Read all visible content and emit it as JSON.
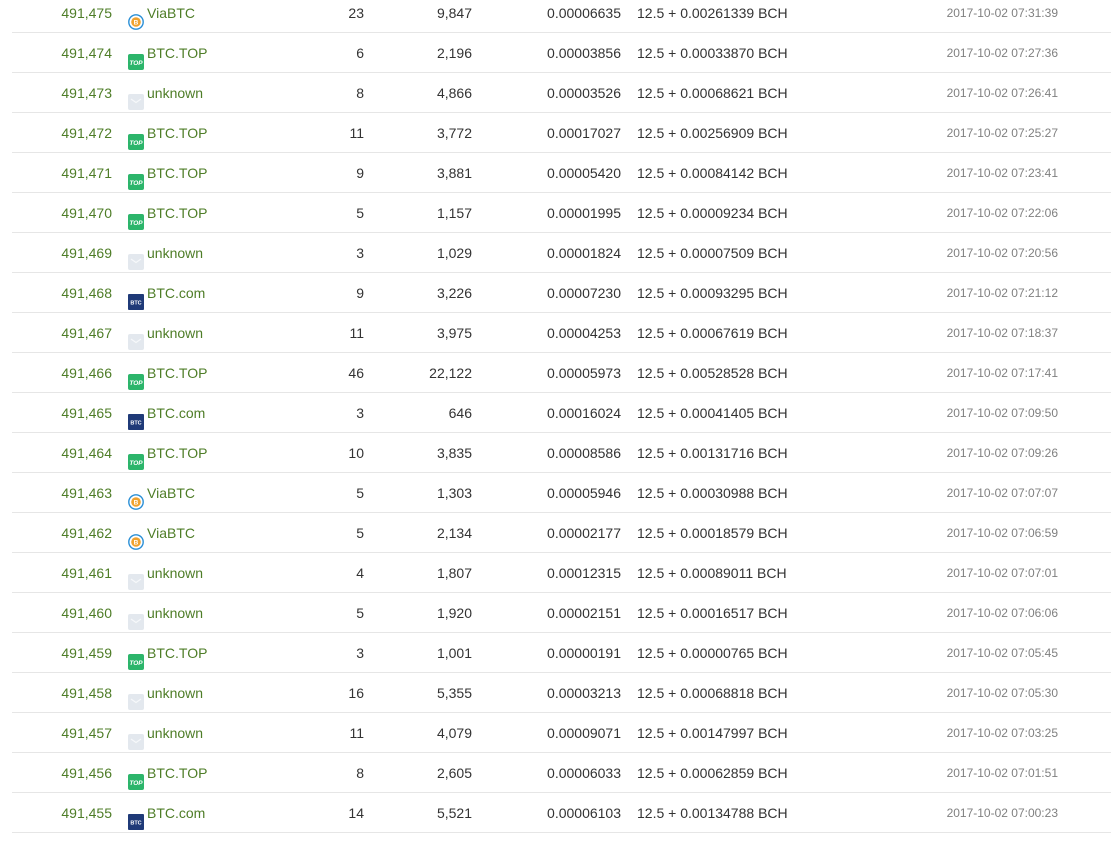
{
  "blocks": [
    {
      "height": "491,475",
      "pool": "ViaBTC",
      "pool_icon": "viabtc-icon",
      "tx": "23",
      "size": "9,847",
      "fee": "0.00006635",
      "reward_base": "12.5 + 0.00261339",
      "reward_unit": "BCH",
      "time": "2017-10-02 07:31:39"
    },
    {
      "height": "491,474",
      "pool": "BTC.TOP",
      "pool_icon": "btctop-icon",
      "tx": "6",
      "size": "2,196",
      "fee": "0.00003856",
      "reward_base": "12.5 + 0.00033870",
      "reward_unit": "BCH",
      "time": "2017-10-02 07:27:36"
    },
    {
      "height": "491,473",
      "pool": "unknown",
      "pool_icon": "unknown-pool-icon",
      "tx": "8",
      "size": "4,866",
      "fee": "0.00003526",
      "reward_base": "12.5 + 0.00068621",
      "reward_unit": "BCH",
      "time": "2017-10-02 07:26:41"
    },
    {
      "height": "491,472",
      "pool": "BTC.TOP",
      "pool_icon": "btctop-icon",
      "tx": "11",
      "size": "3,772",
      "fee": "0.00017027",
      "reward_base": "12.5 + 0.00256909",
      "reward_unit": "BCH",
      "time": "2017-10-02 07:25:27"
    },
    {
      "height": "491,471",
      "pool": "BTC.TOP",
      "pool_icon": "btctop-icon",
      "tx": "9",
      "size": "3,881",
      "fee": "0.00005420",
      "reward_base": "12.5 + 0.00084142",
      "reward_unit": "BCH",
      "time": "2017-10-02 07:23:41"
    },
    {
      "height": "491,470",
      "pool": "BTC.TOP",
      "pool_icon": "btctop-icon",
      "tx": "5",
      "size": "1,157",
      "fee": "0.00001995",
      "reward_base": "12.5 + 0.00009234",
      "reward_unit": "BCH",
      "time": "2017-10-02 07:22:06"
    },
    {
      "height": "491,469",
      "pool": "unknown",
      "pool_icon": "unknown-pool-icon",
      "tx": "3",
      "size": "1,029",
      "fee": "0.00001824",
      "reward_base": "12.5 + 0.00007509",
      "reward_unit": "BCH",
      "time": "2017-10-02 07:20:56"
    },
    {
      "height": "491,468",
      "pool": "BTC.com",
      "pool_icon": "btccom-icon",
      "tx": "9",
      "size": "3,226",
      "fee": "0.00007230",
      "reward_base": "12.5 + 0.00093295",
      "reward_unit": "BCH",
      "time": "2017-10-02 07:21:12"
    },
    {
      "height": "491,467",
      "pool": "unknown",
      "pool_icon": "unknown-pool-icon",
      "tx": "11",
      "size": "3,975",
      "fee": "0.00004253",
      "reward_base": "12.5 + 0.00067619",
      "reward_unit": "BCH",
      "time": "2017-10-02 07:18:37"
    },
    {
      "height": "491,466",
      "pool": "BTC.TOP",
      "pool_icon": "btctop-icon",
      "tx": "46",
      "size": "22,122",
      "fee": "0.00005973",
      "reward_base": "12.5 + 0.00528528",
      "reward_unit": "BCH",
      "time": "2017-10-02 07:17:41"
    },
    {
      "height": "491,465",
      "pool": "BTC.com",
      "pool_icon": "btccom-icon",
      "tx": "3",
      "size": "646",
      "fee": "0.00016024",
      "reward_base": "12.5 + 0.00041405",
      "reward_unit": "BCH",
      "time": "2017-10-02 07:09:50"
    },
    {
      "height": "491,464",
      "pool": "BTC.TOP",
      "pool_icon": "btctop-icon",
      "tx": "10",
      "size": "3,835",
      "fee": "0.00008586",
      "reward_base": "12.5 + 0.00131716",
      "reward_unit": "BCH",
      "time": "2017-10-02 07:09:26"
    },
    {
      "height": "491,463",
      "pool": "ViaBTC",
      "pool_icon": "viabtc-icon",
      "tx": "5",
      "size": "1,303",
      "fee": "0.00005946",
      "reward_base": "12.5 + 0.00030988",
      "reward_unit": "BCH",
      "time": "2017-10-02 07:07:07"
    },
    {
      "height": "491,462",
      "pool": "ViaBTC",
      "pool_icon": "viabtc-icon",
      "tx": "5",
      "size": "2,134",
      "fee": "0.00002177",
      "reward_base": "12.5 + 0.00018579",
      "reward_unit": "BCH",
      "time": "2017-10-02 07:06:59"
    },
    {
      "height": "491,461",
      "pool": "unknown",
      "pool_icon": "unknown-pool-icon",
      "tx": "4",
      "size": "1,807",
      "fee": "0.00012315",
      "reward_base": "12.5 + 0.00089011",
      "reward_unit": "BCH",
      "time": "2017-10-02 07:07:01"
    },
    {
      "height": "491,460",
      "pool": "unknown",
      "pool_icon": "unknown-pool-icon",
      "tx": "5",
      "size": "1,920",
      "fee": "0.00002151",
      "reward_base": "12.5 + 0.00016517",
      "reward_unit": "BCH",
      "time": "2017-10-02 07:06:06"
    },
    {
      "height": "491,459",
      "pool": "BTC.TOP",
      "pool_icon": "btctop-icon",
      "tx": "3",
      "size": "1,001",
      "fee": "0.00000191",
      "reward_base": "12.5 + 0.00000765",
      "reward_unit": "BCH",
      "time": "2017-10-02 07:05:45"
    },
    {
      "height": "491,458",
      "pool": "unknown",
      "pool_icon": "unknown-pool-icon",
      "tx": "16",
      "size": "5,355",
      "fee": "0.00003213",
      "reward_base": "12.5 + 0.00068818",
      "reward_unit": "BCH",
      "time": "2017-10-02 07:05:30"
    },
    {
      "height": "491,457",
      "pool": "unknown",
      "pool_icon": "unknown-pool-icon",
      "tx": "11",
      "size": "4,079",
      "fee": "0.00009071",
      "reward_base": "12.5 + 0.00147997",
      "reward_unit": "BCH",
      "time": "2017-10-02 07:03:25"
    },
    {
      "height": "491,456",
      "pool": "BTC.TOP",
      "pool_icon": "btctop-icon",
      "tx": "8",
      "size": "2,605",
      "fee": "0.00006033",
      "reward_base": "12.5 + 0.00062859",
      "reward_unit": "BCH",
      "time": "2017-10-02 07:01:51"
    },
    {
      "height": "491,455",
      "pool": "BTC.com",
      "pool_icon": "btccom-icon",
      "tx": "14",
      "size": "5,521",
      "fee": "0.00006103",
      "reward_base": "12.5 + 0.00134788",
      "reward_unit": "BCH",
      "time": "2017-10-02 07:00:23"
    }
  ],
  "colors": {
    "link_green": "#4e7d27",
    "btctop_green": "#2cb56b",
    "btccom_navy": "#1f3a78",
    "viabtc_orange": "#f0a22e",
    "viabtc_blue": "#2a8fd6",
    "unknown_gray": "#e3e8ee",
    "divider": "#e6e6e6",
    "muted_text": "#808080"
  }
}
